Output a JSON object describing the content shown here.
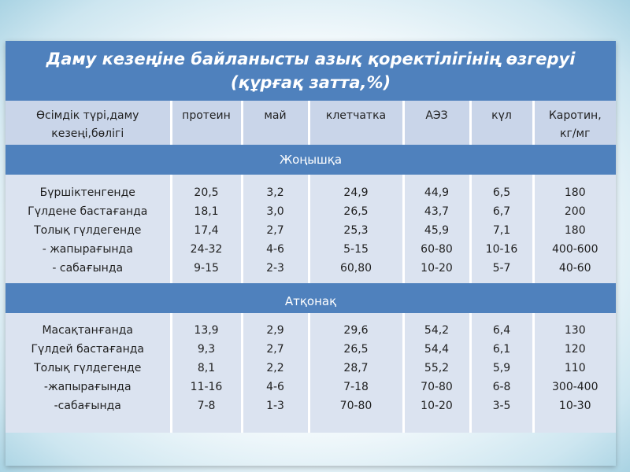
{
  "title": {
    "line1": "Даму кезеңіне байланысты азық қоректілігінің өзгеруі",
    "line2": "(құрғақ затта,%)"
  },
  "columns": [
    [
      "Өсімдік түрі,даму",
      "кезеңі,бөлігі"
    ],
    [
      "протеин"
    ],
    [
      "май"
    ],
    [
      "клетчатка"
    ],
    [
      "АЭЗ"
    ],
    [
      "күл"
    ],
    [
      "Каротин,",
      "кг/мг"
    ]
  ],
  "sections": [
    {
      "name": "Жоңышқа",
      "rows": [
        [
          "Бүршіктенгенде",
          "Гүлдене бастағанда",
          "Толық гүлдегенде",
          "-   жапырағында",
          "-   сабағында"
        ],
        [
          "20,5",
          "18,1",
          "17,4",
          "24-32",
          "9-15"
        ],
        [
          "3,2",
          "3,0",
          "2,7",
          "4-6",
          "2-3"
        ],
        [
          "24,9",
          "26,5",
          "25,3",
          "5-15",
          "60,80"
        ],
        [
          "44,9",
          "43,7",
          "45,9",
          "60-80",
          "10-20"
        ],
        [
          "6,5",
          "6,7",
          "7,1",
          "10-16",
          "5-7"
        ],
        [
          "180",
          "200",
          "180",
          "400-600",
          "40-60"
        ]
      ]
    },
    {
      "name": "Атқонақ",
      "rows": [
        [
          "Масақтанғанда",
          "Гүлдей бастағанда",
          "Толық гүлдегенде",
          "-жапырағында",
          "-сабағында"
        ],
        [
          "13,9",
          "9,3",
          "8,1",
          "11-16",
          "7-8"
        ],
        [
          "2,9",
          "2,7",
          "2,2",
          "4-6",
          "1-3"
        ],
        [
          "29,6",
          "26,5",
          "28,7",
          "7-18",
          "70-80"
        ],
        [
          "54,2",
          "54,4",
          "55,2",
          "70-80",
          "10-20"
        ],
        [
          "6,4",
          "6,1",
          "5,9",
          "6-8",
          "3-5"
        ],
        [
          "130",
          "120",
          "110",
          "300-400",
          "10-30"
        ]
      ]
    }
  ]
}
